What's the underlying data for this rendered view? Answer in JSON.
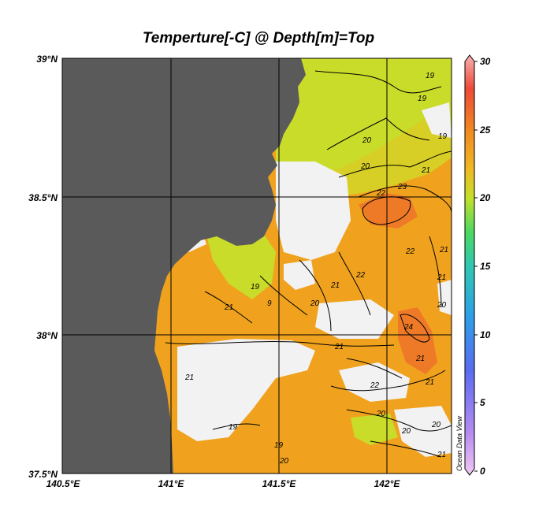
{
  "title": "Temperture[-C] @ Depth[m]=Top",
  "watermark": "Ocean Data View",
  "axes": {
    "x_ticks": [
      "140.5°E",
      "141°E",
      "141.5°E",
      "142°E"
    ],
    "y_ticks": [
      "39°N",
      "38.5°N",
      "38°N",
      "37.5°N"
    ],
    "x_range": [
      140.5,
      142.3
    ],
    "y_range": [
      37.5,
      39.0
    ]
  },
  "colorbar": {
    "ticks": [
      "30",
      "25",
      "20",
      "15",
      "10",
      "5",
      "0"
    ],
    "range": [
      0,
      30
    ]
  },
  "contour_labels": [
    "20",
    "19",
    "21",
    "22",
    "23",
    "24",
    "20",
    "19",
    "21",
    "22",
    "21",
    "20",
    "19",
    "21",
    "21",
    "22",
    "20",
    "19",
    "20",
    "21",
    "22",
    "19",
    "20",
    "21",
    "20",
    "21",
    "19",
    "9",
    "21",
    "20",
    "21"
  ],
  "colors": {
    "land": "#5a5a5a",
    "no_data": "#f2f2f2",
    "warm": "#f0a21e",
    "cool": "#c9dc2a",
    "hot": "#ee7a28"
  }
}
